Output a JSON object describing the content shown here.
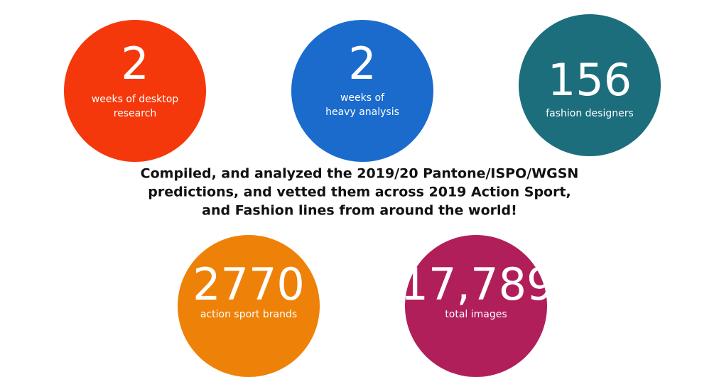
{
  "stats": [
    {
      "number": "2",
      "label": [
        "weeks of desktop",
        "research"
      ]
    },
    {
      "number": "2",
      "label": [
        "weeks of",
        "heavy analysis"
      ]
    },
    {
      "number": "156",
      "label": [
        "fashion designers"
      ]
    },
    {
      "number": "2770",
      "label": [
        "action sport brands"
      ]
    },
    {
      "number": "17,789",
      "label": [
        "total images"
      ]
    }
  ],
  "summary": [
    "Compiled, and analyzed the 2019/20 Pantone/ISPO/WGSN",
    "predictions, and vetted them across 2019 Action Sport,",
    "and Fashion lines from around the world!"
  ]
}
